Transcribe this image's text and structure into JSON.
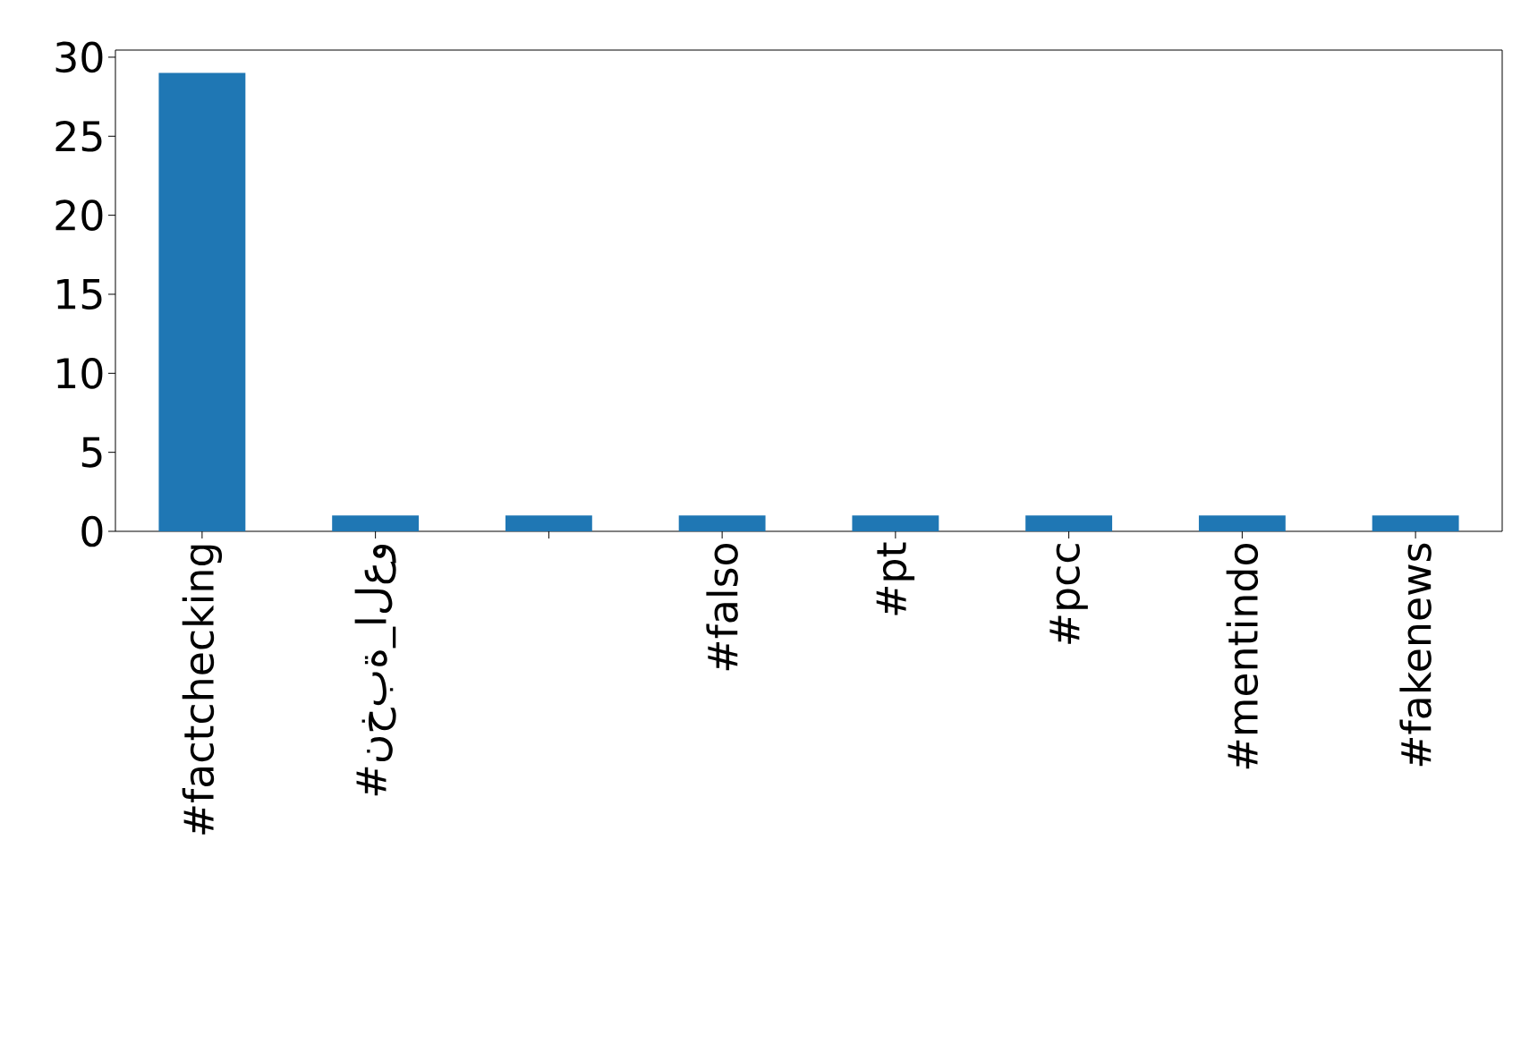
{
  "chart_data": {
    "type": "bar",
    "categories": [
      "#factchecking",
      "#نخبة_العو",
      null,
      "#falso",
      "#pt",
      "#pcc",
      "#mentindo",
      "#fakenews"
    ],
    "values": [
      29,
      1,
      1,
      1,
      1,
      1,
      1,
      1
    ],
    "color": "#1f77b4",
    "ylim": [
      0,
      30.45
    ],
    "yticks": [
      0,
      5,
      10,
      15,
      20,
      25,
      30
    ],
    "grid": false
  }
}
